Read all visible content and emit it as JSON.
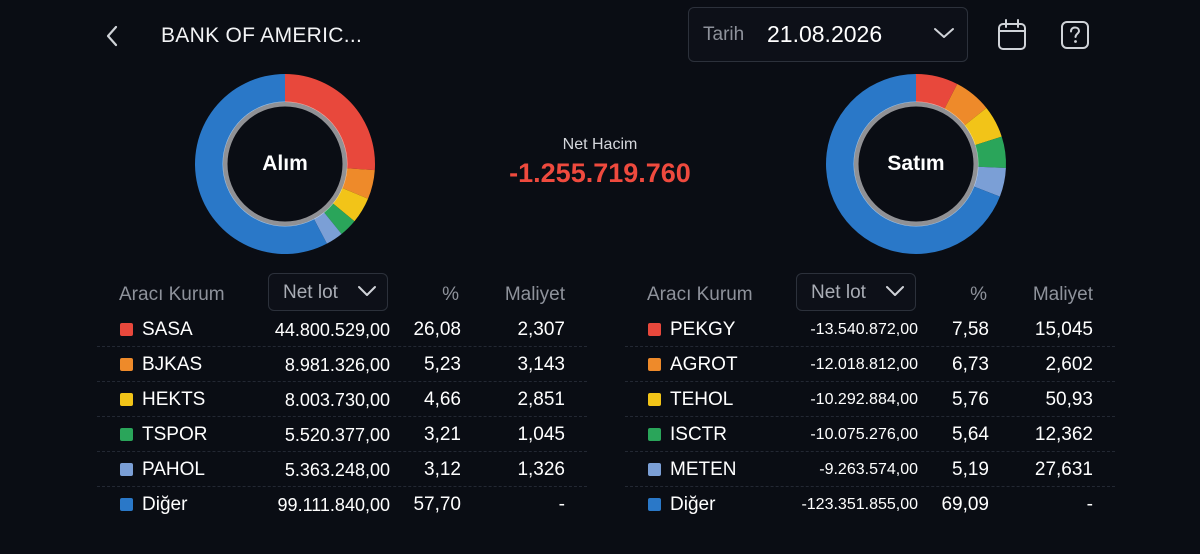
{
  "header": {
    "title": "BANK OF AMERIC...",
    "date_label": "Tarih",
    "date_value": "21.08.2026"
  },
  "icons": {
    "back": "chevron-left-icon",
    "date_dropdown": "chevron-down-icon",
    "calendar": "calendar-icon",
    "help": "help-icon"
  },
  "summary": {
    "net_title": "Net Hacim",
    "net_value": "-1.255.719.760",
    "net_color": "#ef4a3e"
  },
  "colors": {
    "c1": "#e8483c",
    "c2": "#ee8a2a",
    "c3": "#f2c418",
    "c4": "#2aa55a",
    "c5": "#7b9fd6",
    "c6": "#2a78c8"
  },
  "buy": {
    "chart_label": "Alım",
    "headers": {
      "broker": "Aracı Kurum",
      "netlot": "Net lot",
      "pct": "%",
      "cost": "Maliyet"
    },
    "rows": [
      {
        "name": "SASA",
        "lot": "44.800.529,00",
        "pct": "26,08",
        "cost": "2,307",
        "pct_value": 26.08,
        "color": "#e8483c"
      },
      {
        "name": "BJKAS",
        "lot": "8.981.326,00",
        "pct": "5,23",
        "cost": "3,143",
        "pct_value": 5.23,
        "color": "#ee8a2a"
      },
      {
        "name": "HEKTS",
        "lot": "8.003.730,00",
        "pct": "4,66",
        "cost": "2,851",
        "pct_value": 4.66,
        "color": "#f2c418"
      },
      {
        "name": "TSPOR",
        "lot": "5.520.377,00",
        "pct": "3,21",
        "cost": "1,045",
        "pct_value": 3.21,
        "color": "#2aa55a"
      },
      {
        "name": "PAHOL",
        "lot": "5.363.248,00",
        "pct": "3,12",
        "cost": "1,326",
        "pct_value": 3.12,
        "color": "#7b9fd6"
      },
      {
        "name": "Diğer",
        "lot": "99.111.840,00",
        "pct": "57,70",
        "cost": "-",
        "pct_value": 57.7,
        "color": "#2a78c8"
      }
    ]
  },
  "sell": {
    "chart_label": "Satım",
    "headers": {
      "broker": "Aracı Kurum",
      "netlot": "Net lot",
      "pct": "%",
      "cost": "Maliyet"
    },
    "rows": [
      {
        "name": "PEKGY",
        "lot": "-13.540.872,00",
        "pct": "7,58",
        "cost": "15,045",
        "pct_value": 7.58,
        "color": "#e8483c"
      },
      {
        "name": "AGROT",
        "lot": "-12.018.812,00",
        "pct": "6,73",
        "cost": "2,602",
        "pct_value": 6.73,
        "color": "#ee8a2a"
      },
      {
        "name": "TEHOL",
        "lot": "-10.292.884,00",
        "pct": "5,76",
        "cost": "50,93",
        "pct_value": 5.76,
        "color": "#f2c418"
      },
      {
        "name": "ISCTR",
        "lot": "-10.075.276,00",
        "pct": "5,64",
        "cost": "12,362",
        "pct_value": 5.64,
        "color": "#2aa55a"
      },
      {
        "name": "METEN",
        "lot": "-9.263.574,00",
        "pct": "5,19",
        "cost": "27,631",
        "pct_value": 5.19,
        "color": "#7b9fd6"
      },
      {
        "name": "Diğer",
        "lot": "-123.351.855,00",
        "pct": "69,09",
        "cost": "-",
        "pct_value": 69.09,
        "color": "#2a78c8"
      }
    ]
  }
}
